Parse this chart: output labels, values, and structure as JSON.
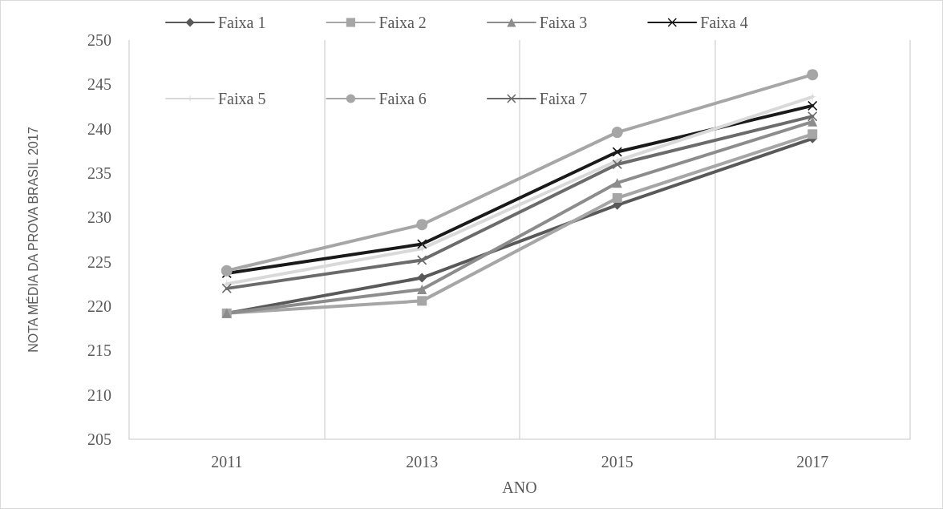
{
  "chart_data": {
    "type": "line",
    "xlabel": "ANO",
    "ylabel": "NOTA MÉDIA DA PROVA BRASIL 2017",
    "categories": [
      "2011",
      "2013",
      "2015",
      "2017"
    ],
    "series": [
      {
        "name": "Faixa 1",
        "color": "#595959",
        "marker": "diamond",
        "values": [
          219.2,
          223.2,
          231.4,
          238.9
        ]
      },
      {
        "name": "Faixa 2",
        "color": "#a6a6a6",
        "marker": "square",
        "values": [
          219.2,
          220.6,
          232.2,
          239.4
        ]
      },
      {
        "name": "Faixa 3",
        "color": "#8c8c8c",
        "marker": "triangle",
        "values": [
          219.2,
          221.9,
          233.9,
          240.8
        ]
      },
      {
        "name": "Faixa 4",
        "color": "#1a1a1a",
        "marker": "cross",
        "values": [
          223.7,
          227.0,
          237.4,
          242.6
        ]
      },
      {
        "name": "Faixa 5",
        "color": "#d9d9d9",
        "marker": "star",
        "values": [
          222.5,
          226.5,
          236.4,
          243.6
        ]
      },
      {
        "name": "Faixa 6",
        "color": "#a6a6a6",
        "marker": "circle",
        "values": [
          224.0,
          229.2,
          239.6,
          246.1
        ]
      },
      {
        "name": "Faixa 7",
        "color": "#6b6b6b",
        "marker": "cross",
        "values": [
          222.0,
          225.2,
          236.0,
          241.4
        ]
      }
    ],
    "ylim": [
      205,
      250
    ],
    "yticks": [
      205,
      210,
      215,
      220,
      225,
      230,
      235,
      240,
      245,
      250
    ],
    "grid": "x",
    "legend": "top",
    "line_style": "solid"
  }
}
